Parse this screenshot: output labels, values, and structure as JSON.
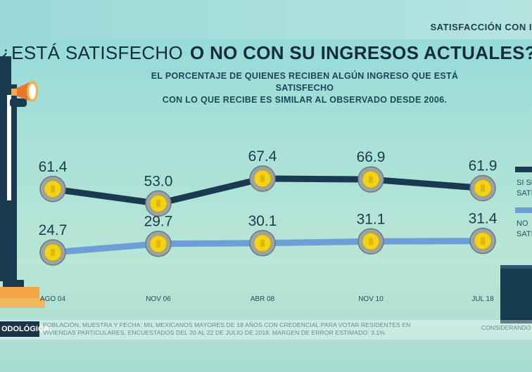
{
  "header": {
    "section_tag": "SATISFACCIÓN CON I",
    "title_part1": "¿ESTÁ SATISFECHO",
    "title_part2": "O NO CON SU INGRESOS ACTUALES?",
    "subtitle_line1": "EL PORCENTAJE DE QUIENES RECIBEN ALGÚN INGRESO QUE ESTÁ SATISFECHO",
    "subtitle_line2": "CON LO QUE RECIBE ES SIMILAR AL OBSERVADO DESDE 2006."
  },
  "colors": {
    "series_satisfied": "#1a3a52",
    "series_not_satisfied": "#6c9fd8",
    "coin_gold": "#f2d21a",
    "coin_ring": "#8f9699"
  },
  "chart_data": {
    "type": "line",
    "title": "¿ESTÁ SATISFECHO O NO CON SU INGRESOS ACTUALES?",
    "categories": [
      "AGO 04",
      "NOV 06",
      "ABR 08",
      "NOV 10",
      "JUL 18"
    ],
    "series": [
      {
        "name": "SI SE... SATI...",
        "legend_line1": "SI SE",
        "legend_line2": "SATI",
        "values": [
          61.4,
          53.0,
          67.4,
          66.9,
          61.9
        ]
      },
      {
        "name": "NO ... SATI...",
        "legend_line1": "NO",
        "legend_line2": "SATI",
        "values": [
          24.7,
          29.7,
          30.1,
          31.1,
          31.4
        ]
      }
    ],
    "value_labels": [
      [
        "61.4",
        "53.0",
        "67.4",
        "66.9",
        "61.9"
      ],
      [
        "24.7",
        "29.7",
        "30.1",
        "31.1",
        "31.4"
      ]
    ],
    "xlabel": "",
    "ylabel": "",
    "ylim": [
      0,
      80
    ],
    "grid": false,
    "legend_position": "right"
  },
  "methodology": {
    "label": "ODOLÓGICA:",
    "text": "POBLACIÓN, MUESTRA Y FECHA: MIL MEXICANOS MAYORES DE 18 AÑOS CON CREDENCIAL PARA VOTAR RESIDENTES EN VIVIENDAS PARTICULARES, ENCUESTADOS DEL 20 AL 22 DE JULIO DE 2018. MARGEN DE ERROR ESTIMADO: 3.1%",
    "right_text": "CONSIDERANDO"
  }
}
